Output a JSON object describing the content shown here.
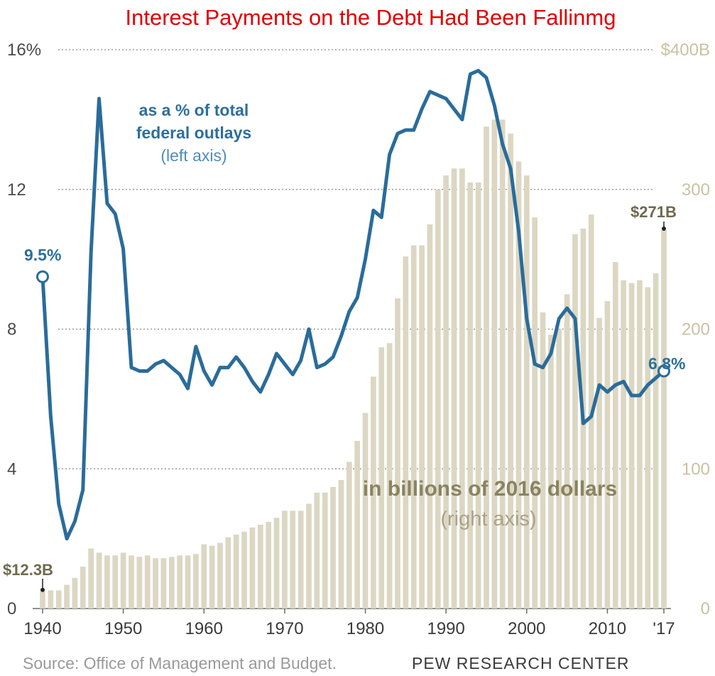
{
  "chart_data": {
    "type": "bar+line",
    "title": "Interest Payments on the Debt Had Been Fallinmg",
    "x_tick_labels": [
      "1940",
      "1950",
      "1960",
      "1970",
      "1980",
      "1990",
      "2000",
      "2010",
      "'17"
    ],
    "x_tick_years": [
      1940,
      1950,
      1960,
      1970,
      1980,
      1990,
      2000,
      2010,
      2017
    ],
    "left_axis": {
      "ticks": [
        "0",
        "4",
        "8",
        "12",
        "16%"
      ],
      "values": [
        0,
        4,
        8,
        12,
        16
      ],
      "ylim": [
        0,
        16
      ]
    },
    "right_axis": {
      "ticks": [
        "0",
        "100",
        "200",
        "300",
        "$400B"
      ],
      "values": [
        0,
        100,
        200,
        300,
        400
      ],
      "ylim": [
        0,
        400
      ]
    },
    "grid": true,
    "years": [
      1940,
      1941,
      1942,
      1943,
      1944,
      1945,
      1946,
      1947,
      1948,
      1949,
      1950,
      1951,
      1952,
      1953,
      1954,
      1955,
      1956,
      1957,
      1958,
      1959,
      1960,
      1961,
      1962,
      1963,
      1964,
      1965,
      1966,
      1967,
      1968,
      1969,
      1970,
      1971,
      1972,
      1973,
      1974,
      1975,
      1976,
      1977,
      1978,
      1979,
      1980,
      1981,
      1982,
      1983,
      1984,
      1985,
      1986,
      1987,
      1988,
      1989,
      1990,
      1991,
      1992,
      1993,
      1994,
      1995,
      1996,
      1997,
      1998,
      1999,
      2000,
      2001,
      2002,
      2003,
      2004,
      2005,
      2006,
      2007,
      2008,
      2009,
      2010,
      2011,
      2012,
      2013,
      2014,
      2015,
      2016,
      2017
    ],
    "series": [
      {
        "name": "in billions of 2016 dollars",
        "axis": "right",
        "type": "bar",
        "values": [
          12.3,
          13,
          13,
          17,
          22,
          30,
          43,
          40,
          38,
          38,
          40,
          38,
          37,
          38,
          36,
          36,
          37,
          38,
          38,
          39,
          46,
          45,
          47,
          51,
          53,
          55,
          58,
          60,
          62,
          65,
          70,
          70,
          70,
          75,
          83,
          83,
          87,
          92,
          105,
          120,
          140,
          166,
          187,
          190,
          222,
          252,
          260,
          260,
          275,
          300,
          310,
          315,
          315,
          305,
          305,
          345,
          350,
          350,
          340,
          320,
          310,
          280,
          212,
          196,
          200,
          225,
          268,
          272,
          282,
          208,
          220,
          248,
          235,
          233,
          235,
          230,
          240,
          271
        ]
      },
      {
        "name": "as a % of total federal outlays",
        "axis": "left",
        "type": "line",
        "values": [
          9.5,
          5.5,
          3.0,
          2.0,
          2.5,
          3.4,
          10.2,
          14.6,
          11.6,
          11.3,
          10.3,
          6.9,
          6.8,
          6.8,
          7.0,
          7.1,
          6.9,
          6.7,
          6.3,
          7.5,
          6.8,
          6.4,
          6.9,
          6.9,
          7.2,
          6.9,
          6.5,
          6.2,
          6.7,
          7.3,
          7.0,
          6.7,
          7.1,
          8.0,
          6.9,
          7.0,
          7.2,
          7.8,
          8.5,
          8.9,
          10.0,
          11.4,
          11.2,
          13.0,
          13.6,
          13.7,
          13.7,
          14.3,
          14.8,
          14.7,
          14.6,
          14.3,
          14.0,
          15.3,
          15.4,
          15.2,
          14.4,
          13.3,
          12.6,
          10.8,
          8.3,
          7.0,
          6.9,
          7.3,
          8.3,
          8.6,
          8.3,
          5.3,
          5.5,
          6.4,
          6.2,
          6.4,
          6.5,
          6.1,
          6.1,
          6.4,
          6.6,
          6.8
        ]
      }
    ],
    "series_labels": {
      "line_line1": "as a % of total",
      "line_line2": "federal outlays",
      "line_sub": "(left axis)",
      "bar_line1": "in billions of 2016 dollars",
      "bar_sub": "(right axis)"
    },
    "annotations": {
      "start_pct": "9.5%",
      "end_pct": "6.8%",
      "start_dollars": "$12.3B",
      "end_dollars": "$271B"
    },
    "colors": {
      "line": "#2a6c9a",
      "bar": "#dcd7c3",
      "title": "#e00000",
      "left_ticks": "#4a4a4a",
      "right_ticks": "#c9c2a2"
    }
  },
  "footer": {
    "source": "Source: Office of Management and Budget.",
    "credit": "PEW RESEARCH CENTER"
  }
}
